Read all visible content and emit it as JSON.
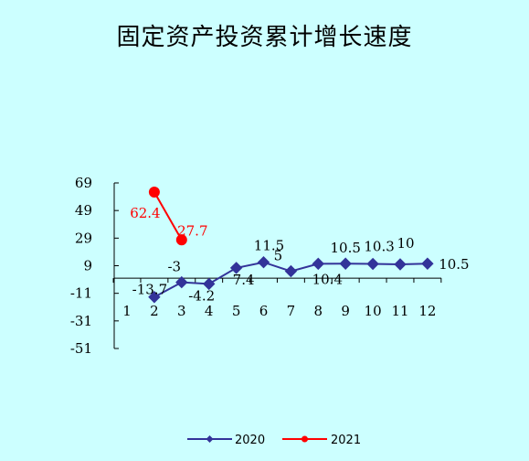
{
  "chart_data": {
    "type": "line",
    "title": "固定资产投资累计增长速度",
    "xlabel": "",
    "ylabel": "",
    "x": [
      1,
      2,
      3,
      4,
      5,
      6,
      7,
      8,
      9,
      10,
      11,
      12
    ],
    "x_tick_labels": [
      "1",
      "2",
      "3",
      "4",
      "5",
      "6",
      "7",
      "8",
      "9",
      "10",
      "11",
      "12"
    ],
    "y_ticks": [
      69,
      49,
      29,
      9,
      -11,
      -31,
      -51
    ],
    "ylim": [
      -51,
      69
    ],
    "grid": false,
    "legend_position": "bottom",
    "series": [
      {
        "name": "2020",
        "color": "#333399",
        "marker": "diamond",
        "x": [
          2,
          3,
          4,
          5,
          6,
          7,
          8,
          9,
          10,
          11,
          12
        ],
        "values": [
          -13.7,
          -3,
          -4.2,
          7.4,
          11.5,
          5,
          10.4,
          10.5,
          10.3,
          10,
          10.5
        ],
        "labels": [
          "-13.7",
          "-3",
          "-4.2",
          "7.4",
          "11.5",
          "5",
          "10.4",
          "10.5",
          "10.3",
          "10",
          "10.5"
        ]
      },
      {
        "name": "2021",
        "color": "#ff0000",
        "marker": "circle",
        "x": [
          2,
          3
        ],
        "values": [
          62.4,
          27.7
        ],
        "labels": [
          "62.4",
          "27.7"
        ]
      }
    ]
  }
}
